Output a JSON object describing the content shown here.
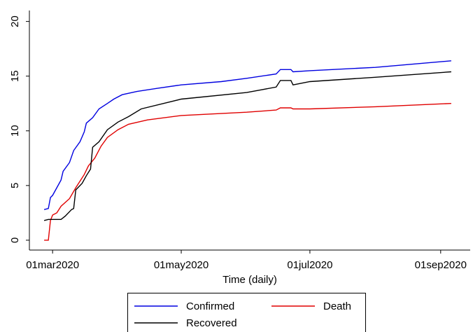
{
  "chart_data": {
    "type": "line",
    "x_label": "Time (daily)",
    "xlim": [
      "2020-02-19",
      "2020-09-15"
    ],
    "xticks": [
      {
        "value": "2020-03-01",
        "label": "01mar2020"
      },
      {
        "value": "2020-05-01",
        "label": "01may2020"
      },
      {
        "value": "2020-07-01",
        "label": "01jul2020"
      },
      {
        "value": "2020-09-01",
        "label": "01sep2020"
      }
    ],
    "ylim": [
      -0.9,
      21
    ],
    "yticks": [
      0,
      5,
      10,
      15,
      20
    ],
    "grid": false,
    "legend": "bottom",
    "series": [
      {
        "name": "Confirmed",
        "color": "#0000e0",
        "x": [
          "2020-02-26",
          "2020-02-28",
          "2020-02-29",
          "2020-03-01",
          "2020-03-03",
          "2020-03-05",
          "2020-03-06",
          "2020-03-09",
          "2020-03-11",
          "2020-03-14",
          "2020-03-16",
          "2020-03-17",
          "2020-03-20",
          "2020-03-23",
          "2020-03-27",
          "2020-03-30",
          "2020-04-03",
          "2020-04-10",
          "2020-04-20",
          "2020-05-01",
          "2020-05-20",
          "2020-06-01",
          "2020-06-15",
          "2020-06-17",
          "2020-06-22",
          "2020-06-23",
          "2020-07-01",
          "2020-08-01",
          "2020-09-06"
        ],
        "values": [
          2.8,
          2.9,
          3.9,
          4.1,
          4.8,
          5.5,
          6.3,
          7.1,
          8.2,
          9.0,
          9.9,
          10.7,
          11.2,
          12.0,
          12.5,
          12.9,
          13.3,
          13.6,
          13.9,
          14.2,
          14.5,
          14.8,
          15.2,
          15.6,
          15.6,
          15.4,
          15.5,
          15.8,
          16.4
        ]
      },
      {
        "name": "Death",
        "color": "#e00000",
        "x": [
          "2020-02-26",
          "2020-02-28",
          "2020-02-29",
          "2020-03-01",
          "2020-03-03",
          "2020-03-05",
          "2020-03-09",
          "2020-03-12",
          "2020-03-16",
          "2020-03-18",
          "2020-03-21",
          "2020-03-24",
          "2020-03-27",
          "2020-04-01",
          "2020-04-06",
          "2020-04-15",
          "2020-05-01",
          "2020-06-01",
          "2020-06-15",
          "2020-06-17",
          "2020-06-22",
          "2020-06-23",
          "2020-07-01",
          "2020-08-01",
          "2020-09-06"
        ],
        "values": [
          0,
          0,
          1.8,
          2.3,
          2.5,
          3.1,
          3.8,
          4.8,
          6.0,
          6.8,
          7.5,
          8.6,
          9.4,
          10.1,
          10.6,
          11.0,
          11.4,
          11.7,
          11.9,
          12.1,
          12.1,
          12.0,
          12.0,
          12.2,
          12.5
        ]
      },
      {
        "name": "Recovered",
        "color": "#000000",
        "x": [
          "2020-02-26",
          "2020-02-28",
          "2020-03-05",
          "2020-03-07",
          "2020-03-10",
          "2020-03-11",
          "2020-03-12",
          "2020-03-15",
          "2020-03-17",
          "2020-03-19",
          "2020-03-20",
          "2020-03-23",
          "2020-03-27",
          "2020-04-01",
          "2020-04-06",
          "2020-04-12",
          "2020-05-01",
          "2020-06-01",
          "2020-06-15",
          "2020-06-17",
          "2020-06-22",
          "2020-06-23",
          "2020-07-01",
          "2020-08-01",
          "2020-09-06"
        ],
        "values": [
          1.8,
          1.9,
          1.9,
          2.2,
          2.8,
          2.9,
          4.6,
          5.2,
          5.9,
          6.5,
          8.5,
          9.0,
          10.1,
          10.8,
          11.3,
          12.0,
          12.9,
          13.5,
          14.0,
          14.6,
          14.6,
          14.2,
          14.5,
          14.9,
          15.4
        ]
      }
    ]
  }
}
